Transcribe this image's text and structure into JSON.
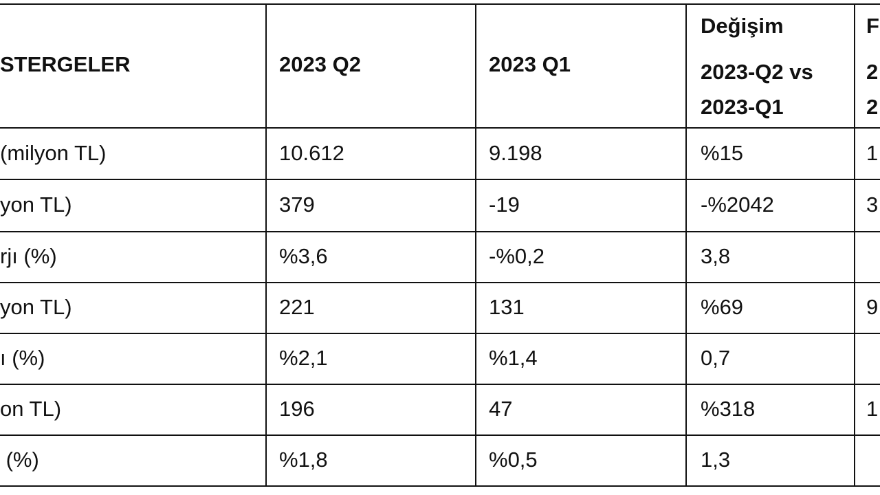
{
  "table": {
    "header": [
      "STERGELER",
      "2023 Q2",
      "2023 Q1",
      [
        "Değişim",
        "2023-Q2 vs",
        "2023-Q1"
      ],
      [
        "F",
        "2",
        "2"
      ]
    ],
    "rows": [
      [
        "(milyon TL)",
        "10.612",
        "9.198",
        "%15",
        "1"
      ],
      [
        "yon TL)",
        "379",
        "-19",
        "-%2042",
        "3"
      ],
      [
        "rjı (%)",
        "%3,6",
        "-%0,2",
        "3,8",
        null
      ],
      [
        "yon TL)",
        "221",
        "131",
        "%69",
        "9"
      ],
      [
        "ı (%)",
        "%2,1",
        "%1,4",
        "0,7",
        null
      ],
      [
        "on TL)",
        "196",
        "47",
        "%318",
        "1"
      ],
      [
        " (%)",
        "%1,8",
        "%0,5",
        "1,3",
        null
      ]
    ]
  }
}
